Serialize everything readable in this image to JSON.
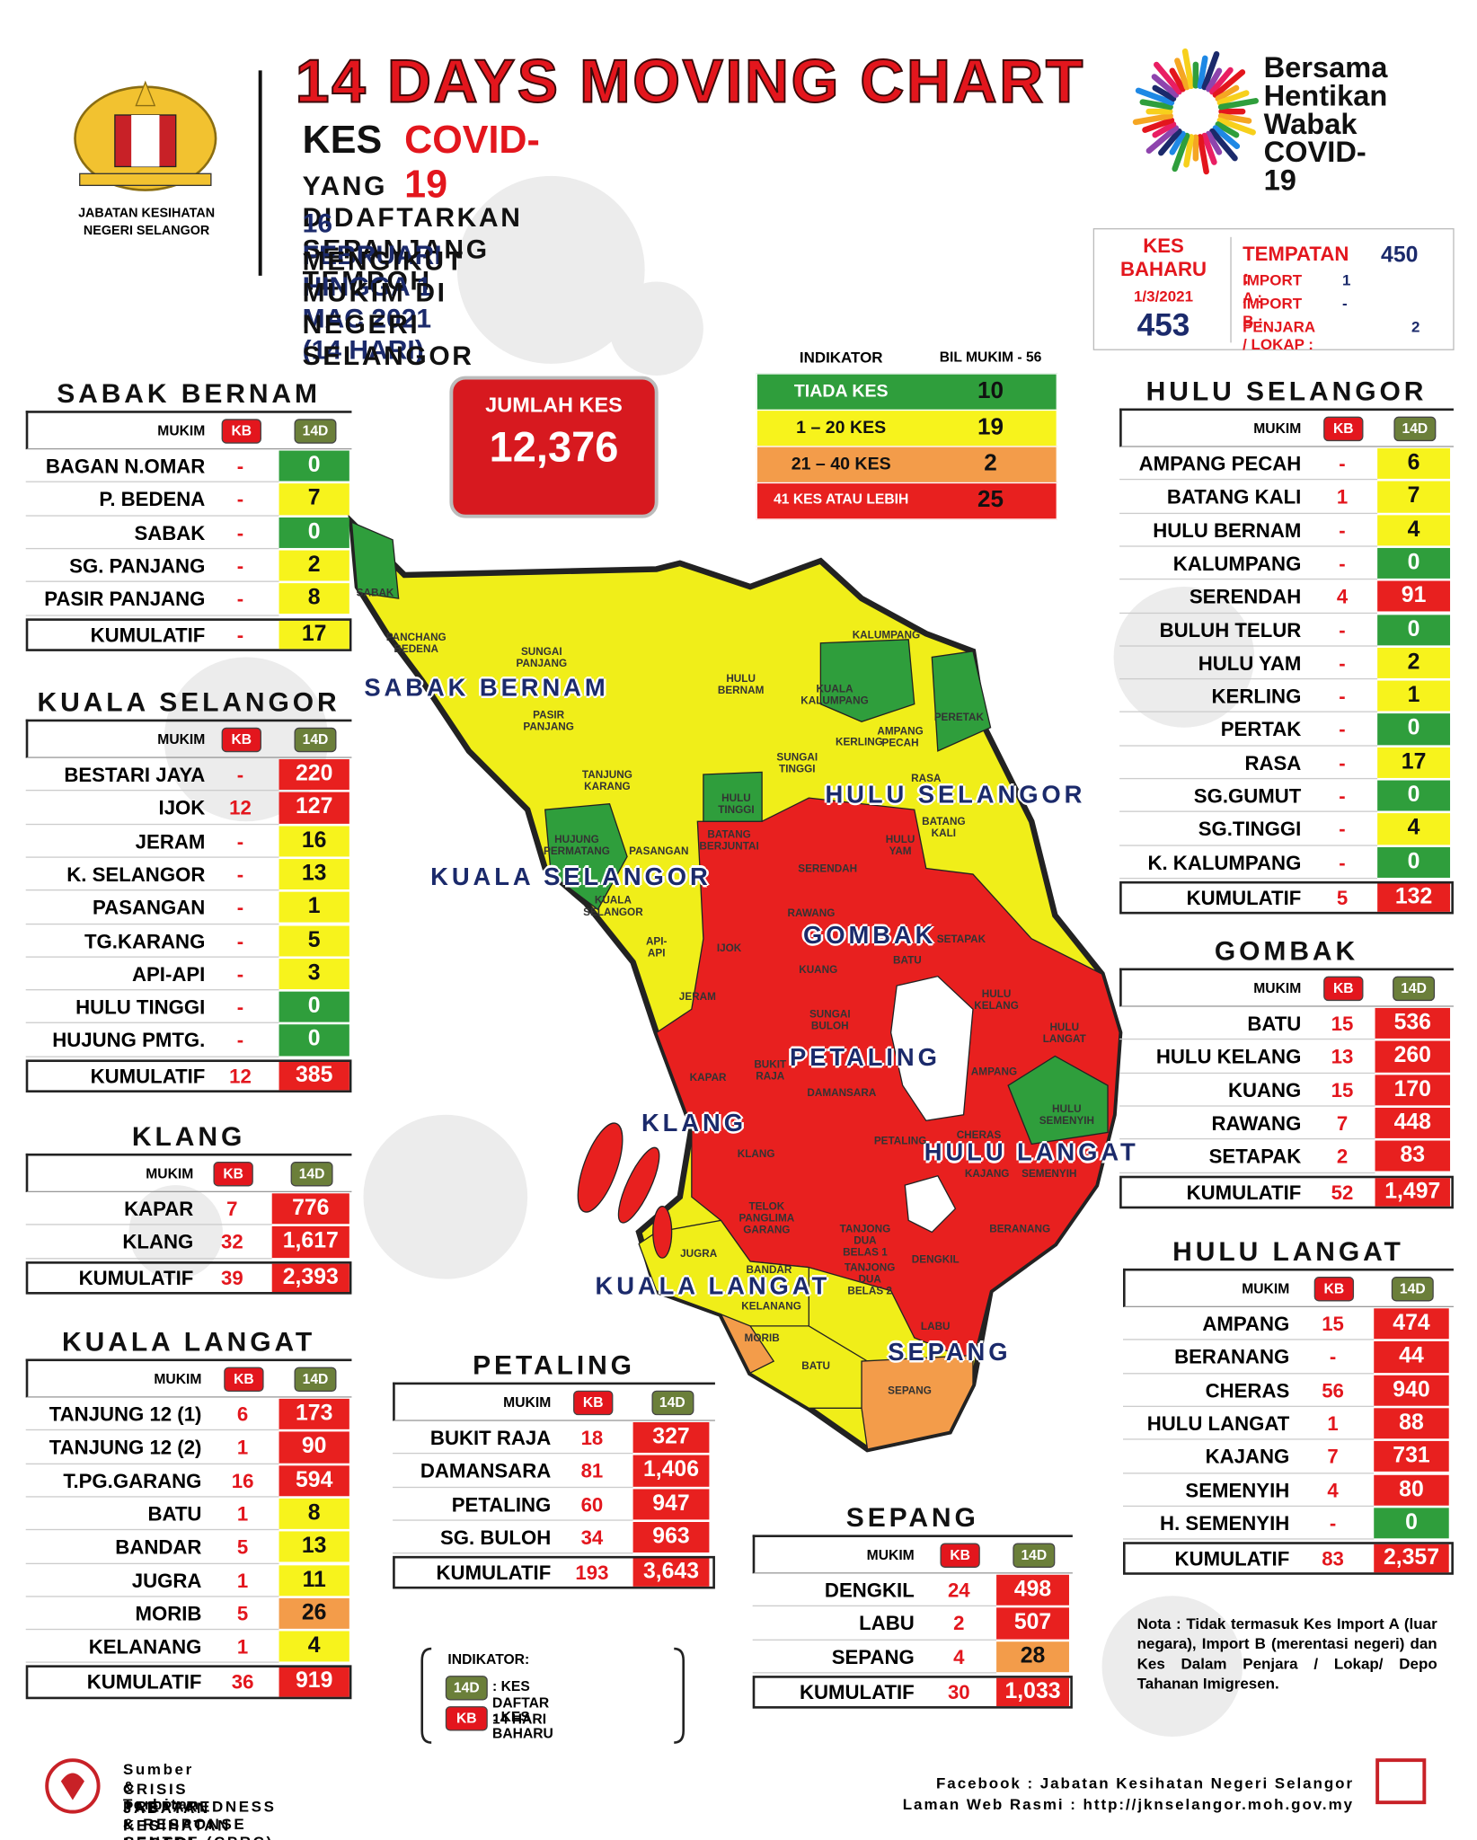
{
  "header": {
    "title": "14 DAYS MOVING CHART",
    "kes": "KES",
    "covid": "COVID-19",
    "line2": "YANG DIDAFTARKAN SEPANJANG TEMPOH",
    "line3": "16 FEBRUARI HINGGA 1 MAC 2021 (14 HARI)",
    "line4": "MENGIKUT MUKIM DI NEGERI SELANGOR"
  },
  "logo_left": [
    "JABATAN KESIHATAN",
    "NEGERI SELANGOR"
  ],
  "logo_right": [
    "Bersama",
    "Hentikan",
    "Wabak",
    "COVID-19"
  ],
  "kes_baharu": {
    "label": "KES BAHARU",
    "date": "1/3/2021",
    "total": "453",
    "tempatan_label": "TEMPATAN :",
    "tempatan": "450",
    "import_a_label": "IMPORT A :",
    "import_a": "1",
    "import_b_label": "IMPORT B :",
    "import_b": "-",
    "penjara_label": "PENJARA / LOKAP :",
    "penjara": "2"
  },
  "jumlah_kes": {
    "label": "JUMLAH KES",
    "value": "12,376"
  },
  "indicator": {
    "header": [
      "INDIKATOR",
      "BIL MUKIM - 56"
    ],
    "rows": [
      {
        "label": "TIADA KES",
        "count": "10",
        "level": "green"
      },
      {
        "label": "1 – 20 KES",
        "count": "19",
        "level": "yellow"
      },
      {
        "label": "21 – 40 KES",
        "count": "2",
        "level": "orange"
      },
      {
        "label": "41 KES ATAU LEBIH",
        "count": "25",
        "level": "red"
      }
    ]
  },
  "table_headers": [
    "MUKIM",
    "KB",
    "14D"
  ],
  "total_label": "KUMULATIF",
  "districts": [
    {
      "name": "SABAK BERNAM",
      "rows": [
        {
          "mukim": "BAGAN N.OMAR",
          "kb": "-",
          "d14": "0",
          "level": "green"
        },
        {
          "mukim": "P. BEDENA",
          "kb": "-",
          "d14": "7",
          "level": "yellow"
        },
        {
          "mukim": "SABAK",
          "kb": "-",
          "d14": "0",
          "level": "green"
        },
        {
          "mukim": "SG. PANJANG",
          "kb": "-",
          "d14": "2",
          "level": "yellow"
        },
        {
          "mukim": "PASIR PANJANG",
          "kb": "-",
          "d14": "8",
          "level": "yellow"
        }
      ],
      "total": {
        "kb": "-",
        "d14": "17",
        "level": "yellow"
      }
    },
    {
      "name": "KUALA SELANGOR",
      "rows": [
        {
          "mukim": "BESTARI JAYA",
          "kb": "-",
          "d14": "220",
          "level": "red"
        },
        {
          "mukim": "IJOK",
          "kb": "12",
          "d14": "127",
          "level": "red"
        },
        {
          "mukim": "JERAM",
          "kb": "-",
          "d14": "16",
          "level": "yellow"
        },
        {
          "mukim": "K. SELANGOR",
          "kb": "-",
          "d14": "13",
          "level": "yellow"
        },
        {
          "mukim": "PASANGAN",
          "kb": "-",
          "d14": "1",
          "level": "yellow"
        },
        {
          "mukim": "TG.KARANG",
          "kb": "-",
          "d14": "5",
          "level": "yellow"
        },
        {
          "mukim": "API-API",
          "kb": "-",
          "d14": "3",
          "level": "yellow"
        },
        {
          "mukim": "HULU TINGGI",
          "kb": "-",
          "d14": "0",
          "level": "green"
        },
        {
          "mukim": "HUJUNG PMTG.",
          "kb": "-",
          "d14": "0",
          "level": "green"
        }
      ],
      "total": {
        "kb": "12",
        "d14": "385",
        "level": "red"
      }
    },
    {
      "name": "KLANG",
      "rows": [
        {
          "mukim": "KAPAR",
          "kb": "7",
          "d14": "776",
          "level": "red"
        },
        {
          "mukim": "KLANG",
          "kb": "32",
          "d14": "1,617",
          "level": "red"
        }
      ],
      "total": {
        "kb": "39",
        "d14": "2,393",
        "level": "red"
      }
    },
    {
      "name": "KUALA LANGAT",
      "rows": [
        {
          "mukim": "TANJUNG 12 (1)",
          "kb": "6",
          "d14": "173",
          "level": "red"
        },
        {
          "mukim": "TANJUNG 12 (2)",
          "kb": "1",
          "d14": "90",
          "level": "red"
        },
        {
          "mukim": "T.PG.GARANG",
          "kb": "16",
          "d14": "594",
          "level": "red"
        },
        {
          "mukim": "BATU",
          "kb": "1",
          "d14": "8",
          "level": "yellow"
        },
        {
          "mukim": "BANDAR",
          "kb": "5",
          "d14": "13",
          "level": "yellow"
        },
        {
          "mukim": "JUGRA",
          "kb": "1",
          "d14": "11",
          "level": "yellow"
        },
        {
          "mukim": "MORIB",
          "kb": "5",
          "d14": "26",
          "level": "orange"
        },
        {
          "mukim": "KELANANG",
          "kb": "1",
          "d14": "4",
          "level": "yellow"
        }
      ],
      "total": {
        "kb": "36",
        "d14": "919",
        "level": "red"
      }
    },
    {
      "name": "PETALING",
      "rows": [
        {
          "mukim": "BUKIT RAJA",
          "kb": "18",
          "d14": "327",
          "level": "red"
        },
        {
          "mukim": "DAMANSARA",
          "kb": "81",
          "d14": "1,406",
          "level": "red"
        },
        {
          "mukim": "PETALING",
          "kb": "60",
          "d14": "947",
          "level": "red"
        },
        {
          "mukim": "SG. BULOH",
          "kb": "34",
          "d14": "963",
          "level": "red"
        }
      ],
      "total": {
        "kb": "193",
        "d14": "3,643",
        "level": "red"
      }
    },
    {
      "name": "SEPANG",
      "rows": [
        {
          "mukim": "DENGKIL",
          "kb": "24",
          "d14": "498",
          "level": "red"
        },
        {
          "mukim": "LABU",
          "kb": "2",
          "d14": "507",
          "level": "red"
        },
        {
          "mukim": "SEPANG",
          "kb": "4",
          "d14": "28",
          "level": "orange"
        }
      ],
      "total": {
        "kb": "30",
        "d14": "1,033",
        "level": "red"
      }
    },
    {
      "name": "HULU SELANGOR",
      "rows": [
        {
          "mukim": "AMPANG PECAH",
          "kb": "-",
          "d14": "6",
          "level": "yellow"
        },
        {
          "mukim": "BATANG KALI",
          "kb": "1",
          "d14": "7",
          "level": "yellow"
        },
        {
          "mukim": "HULU BERNAM",
          "kb": "-",
          "d14": "4",
          "level": "yellow"
        },
        {
          "mukim": "KALUMPANG",
          "kb": "-",
          "d14": "0",
          "level": "green"
        },
        {
          "mukim": "SERENDAH",
          "kb": "4",
          "d14": "91",
          "level": "red"
        },
        {
          "mukim": "BULUH TELUR",
          "kb": "-",
          "d14": "0",
          "level": "green"
        },
        {
          "mukim": "HULU YAM",
          "kb": "-",
          "d14": "2",
          "level": "yellow"
        },
        {
          "mukim": "KERLING",
          "kb": "-",
          "d14": "1",
          "level": "yellow"
        },
        {
          "mukim": "PERTAK",
          "kb": "-",
          "d14": "0",
          "level": "green"
        },
        {
          "mukim": "RASA",
          "kb": "-",
          "d14": "17",
          "level": "yellow"
        },
        {
          "mukim": "SG.GUMUT",
          "kb": "-",
          "d14": "0",
          "level": "green"
        },
        {
          "mukim": "SG.TINGGI",
          "kb": "-",
          "d14": "4",
          "level": "yellow"
        },
        {
          "mukim": "K. KALUMPANG",
          "kb": "-",
          "d14": "0",
          "level": "green"
        }
      ],
      "total": {
        "kb": "5",
        "d14": "132",
        "level": "red"
      }
    },
    {
      "name": "GOMBAK",
      "rows": [
        {
          "mukim": "BATU",
          "kb": "15",
          "d14": "536",
          "level": "red"
        },
        {
          "mukim": "HULU KELANG",
          "kb": "13",
          "d14": "260",
          "level": "red"
        },
        {
          "mukim": "KUANG",
          "kb": "15",
          "d14": "170",
          "level": "red"
        },
        {
          "mukim": "RAWANG",
          "kb": "7",
          "d14": "448",
          "level": "red"
        },
        {
          "mukim": "SETAPAK",
          "kb": "2",
          "d14": "83",
          "level": "red"
        }
      ],
      "total": {
        "kb": "52",
        "d14": "1,497",
        "level": "red"
      }
    },
    {
      "name": "HULU LANGAT",
      "rows": [
        {
          "mukim": "AMPANG",
          "kb": "15",
          "d14": "474",
          "level": "red"
        },
        {
          "mukim": "BERANANG",
          "kb": "-",
          "d14": "44",
          "level": "red"
        },
        {
          "mukim": "CHERAS",
          "kb": "56",
          "d14": "940",
          "level": "red"
        },
        {
          "mukim": "HULU LANGAT",
          "kb": "1",
          "d14": "88",
          "level": "red"
        },
        {
          "mukim": "KAJANG",
          "kb": "7",
          "d14": "731",
          "level": "red"
        },
        {
          "mukim": "SEMENYIH",
          "kb": "4",
          "d14": "80",
          "level": "red"
        },
        {
          "mukim": "H. SEMENYIH",
          "kb": "-",
          "d14": "0",
          "level": "green"
        }
      ],
      "total": {
        "kb": "83",
        "d14": "2,357",
        "level": "red"
      }
    }
  ],
  "map_districts": [
    "SABAK BERNAM",
    "KUALA SELANGOR",
    "HULU SELANGOR",
    "GOMBAK",
    "PETALING",
    "KLANG",
    "HULU LANGAT",
    "KUALA LANGAT",
    "SEPANG"
  ],
  "map_mukims": [
    "SABAK",
    "PANCHANG\nBEDENA",
    "SUNGAI\nPANJANG",
    "HULU\nBERNAM",
    "PASIR\nPANJANG",
    "TANJUNG\nKARANG",
    "HULU\nTINGGI",
    "SUNGAI\nTINGGI",
    "KERLING",
    "AMPANG\nPECAH",
    "KALUMPANG",
    "KUALA\nKALUMPANG",
    "PERETAK",
    "RASA",
    "BATANG\nKALI",
    "HULU\nYAM",
    "HUJUNG\nPERMATANG",
    "PASANGAN",
    "BATANG\nBERJUNTAI",
    "SERENDAH",
    "KUALA\nSELANGOR",
    "RAWANG",
    "API-API",
    "IJOK",
    "KUANG",
    "BATU",
    "SETAPAK",
    "JERAM",
    "SUNGAI\nBULOH",
    "HULU\nKELANG",
    "HULU\nLANGAT",
    "KAPAR",
    "BUKIT\nRAJA",
    "DAMANSARA",
    "AMPANG",
    "HULU\nSEMENYIH",
    "PETALING",
    "CHERAS",
    "KAJANG",
    "SEMENYIH",
    "KLANG",
    "TELOK\nPANGLIMA\nGARANG",
    "TANJONG\nDUA BELAS 1",
    "TANJONG\nDUA BELAS 2",
    "JUGRA",
    "BANDAR",
    "KELANANG",
    "MORIB",
    "BATU",
    "DENGKIL",
    "BERANANG",
    "LABU",
    "SEPANG"
  ],
  "legend": {
    "title": "INDIKATOR:",
    "items": [
      {
        "badge": "14D",
        "text": ": KES DAFTAR 14 HARI"
      },
      {
        "badge": "KB",
        "text": ": KES BAHARU"
      }
    ]
  },
  "note": "Nota : Tidak termasuk Kes Import A (luar negara), Import B (merentasi negeri) dan Kes Dalam Penjara / Lokap/ Depo Tahanan Imigresen.",
  "footer": {
    "source_label": "Sumber & Terbitan :",
    "source1": "CRISIS PREPAREDNESS & RESPONSE CENTRE (CPRC)",
    "source2": "JABATAN KESIHATAN NEGERI SELANGOR",
    "facebook": "Facebook : Jabatan Kesihatan Negeri Selangor",
    "web": "Laman Web Rasmi : http://jknselangor.moh.gov.my"
  }
}
